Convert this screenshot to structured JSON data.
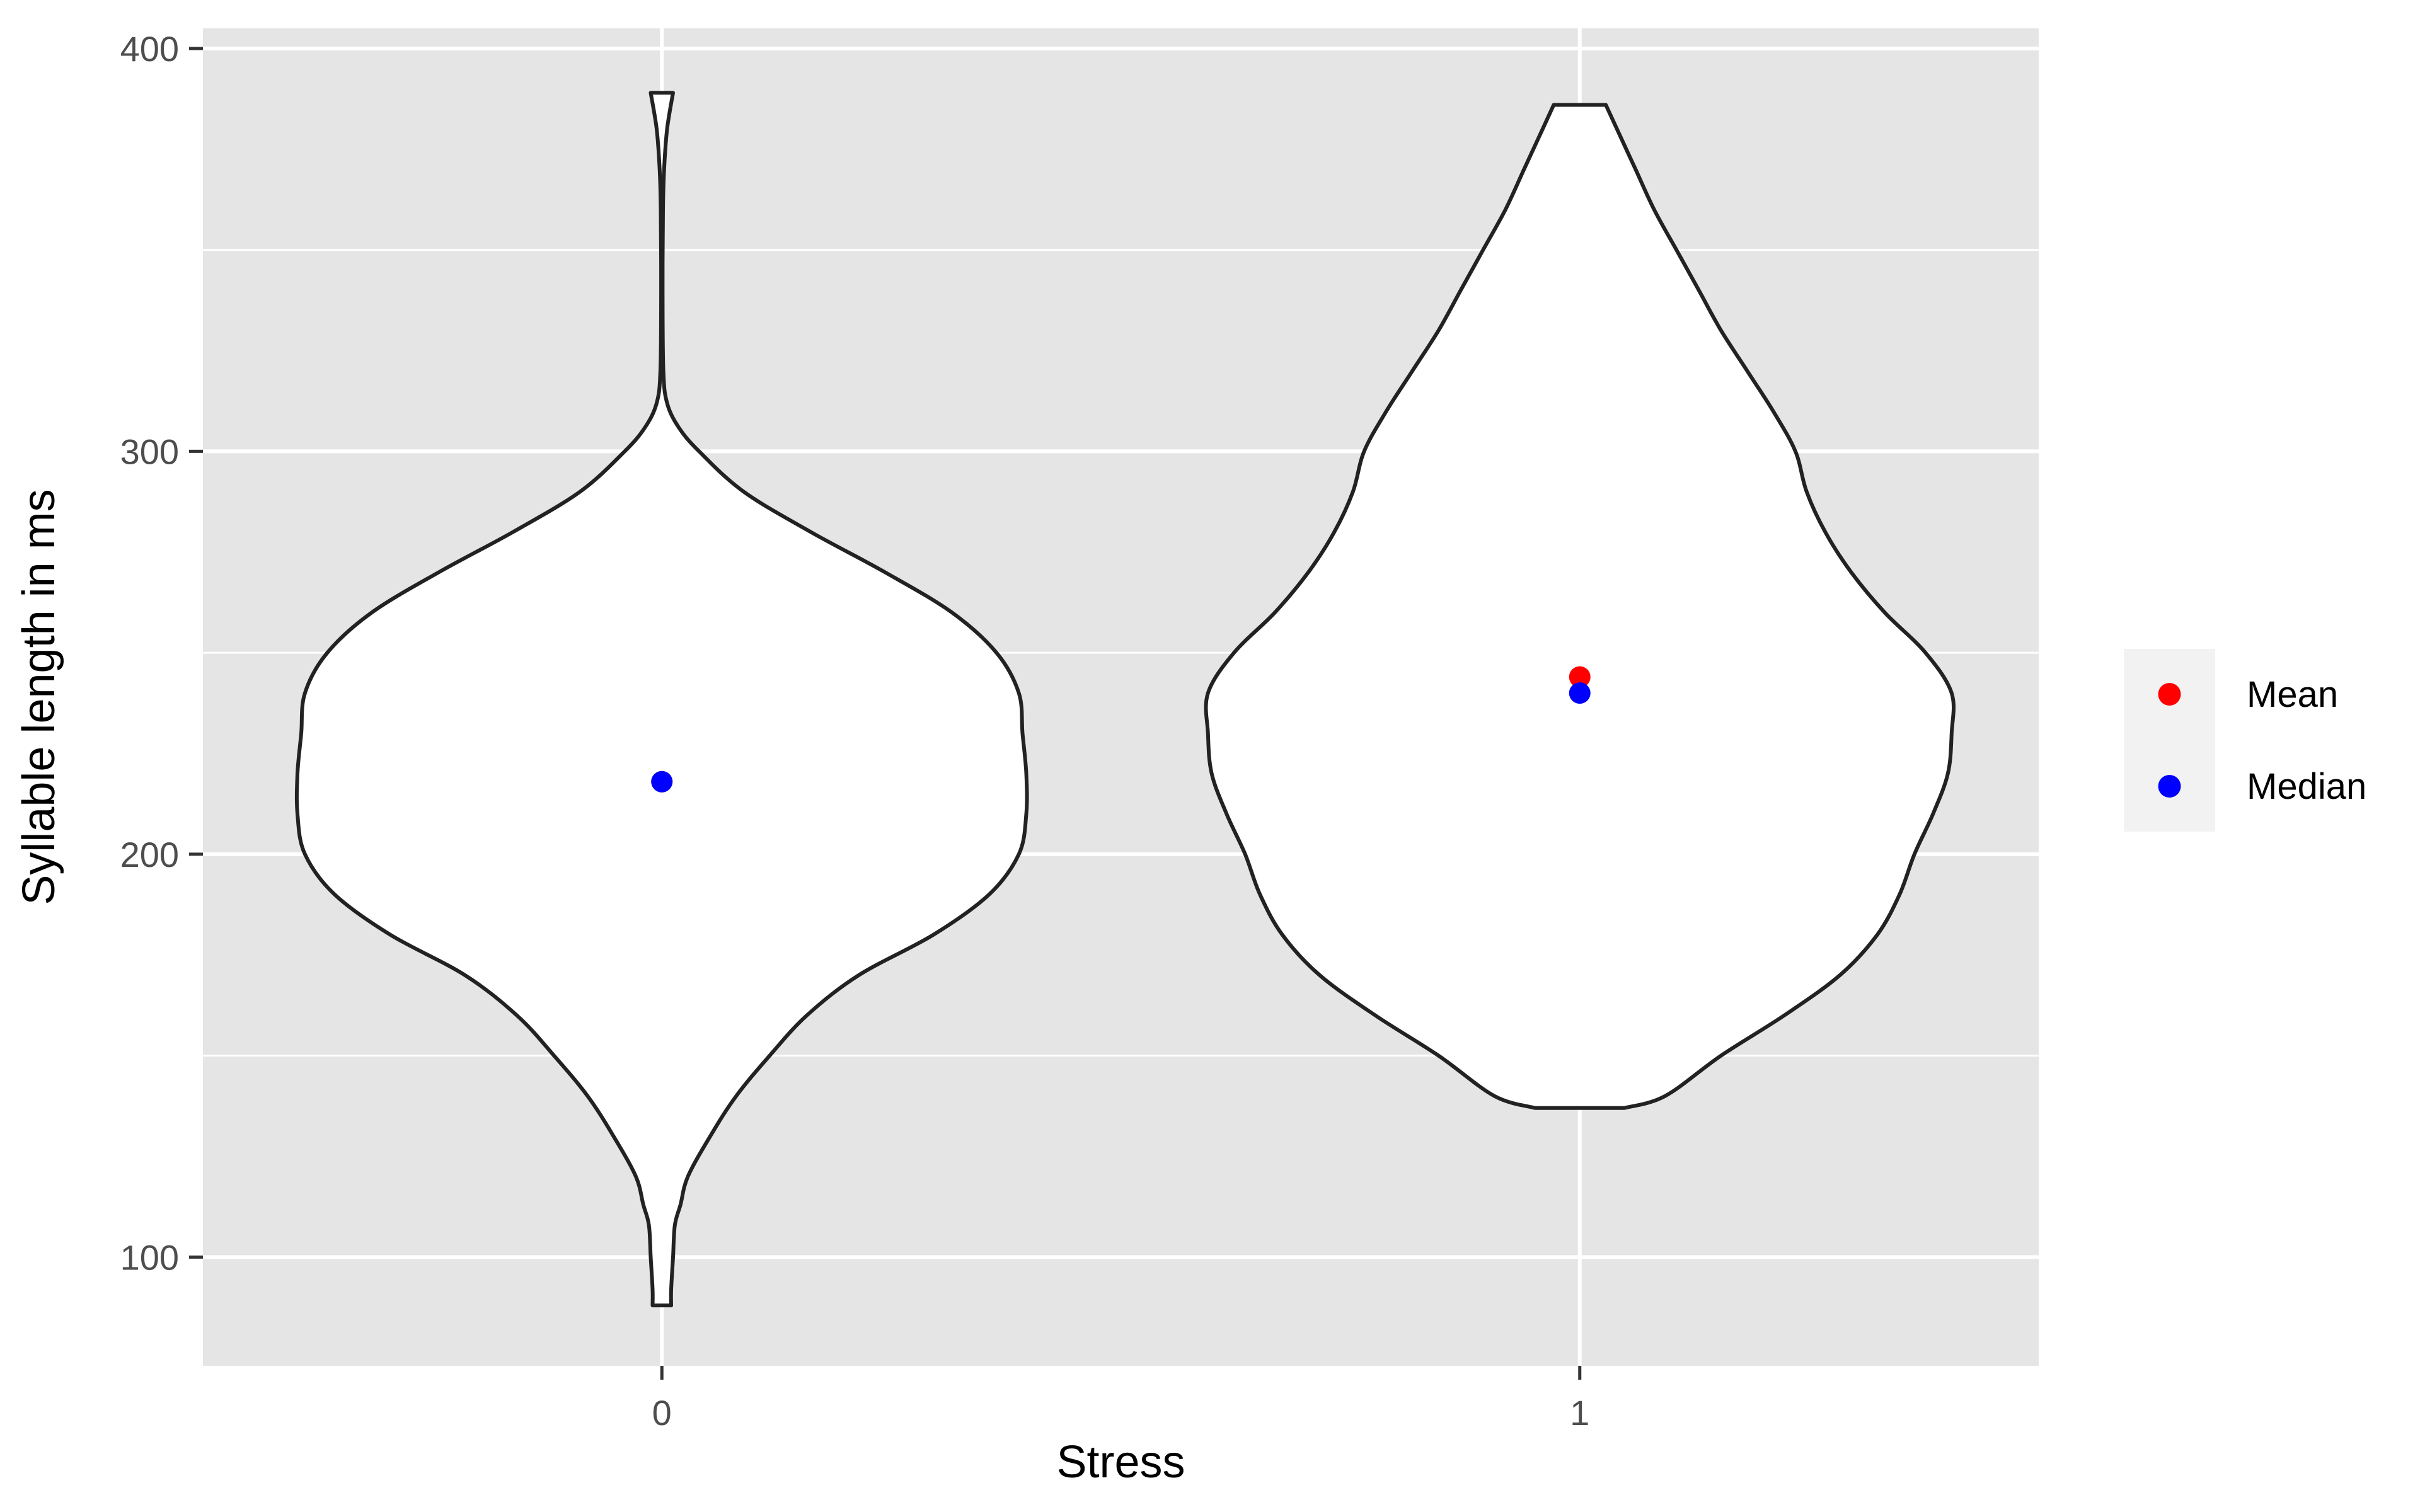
{
  "chart_data": {
    "type": "violin",
    "title": "",
    "xlabel": "Stress",
    "ylabel": "Syllable length in ms",
    "categories": [
      "0",
      "1"
    ],
    "ylim": [
      73,
      405
    ],
    "yticks": [
      100,
      200,
      300,
      400
    ],
    "ytick_labels": [
      "100",
      "200",
      "300",
      "400"
    ],
    "grid": true,
    "legend_position": "right",
    "colors": {
      "panel_background": "#e5e5e5",
      "grid_line": "#ffffff",
      "violin_fill": "#ffffff",
      "violin_outline": "#222222",
      "mean": "#ff0000",
      "median": "#0000ff"
    },
    "violins": [
      {
        "category": "0",
        "range": [
          88,
          389
        ],
        "density_profile": [
          [
            88,
            0.025
          ],
          [
            92,
            0.025
          ],
          [
            100,
            0.03
          ],
          [
            108,
            0.035
          ],
          [
            113,
            0.05
          ],
          [
            120,
            0.07
          ],
          [
            130,
            0.13
          ],
          [
            140,
            0.2
          ],
          [
            150,
            0.29
          ],
          [
            160,
            0.39
          ],
          [
            170,
            0.53
          ],
          [
            180,
            0.73
          ],
          [
            190,
            0.88
          ],
          [
            200,
            0.96
          ],
          [
            210,
            0.98
          ],
          [
            220,
            0.98
          ],
          [
            230,
            0.97
          ],
          [
            240,
            0.96
          ],
          [
            250,
            0.9
          ],
          [
            260,
            0.78
          ],
          [
            270,
            0.6
          ],
          [
            280,
            0.4
          ],
          [
            290,
            0.22
          ],
          [
            300,
            0.1
          ],
          [
            306,
            0.045
          ],
          [
            312,
            0.014
          ],
          [
            320,
            0.004
          ],
          [
            340,
            0.002
          ],
          [
            360,
            0.003
          ],
          [
            370,
            0.006
          ],
          [
            380,
            0.014
          ],
          [
            389,
            0.03
          ]
        ],
        "mean": 218,
        "median": 218
      },
      {
        "category": "1",
        "range": [
          137,
          386
        ],
        "density_profile": [
          [
            137,
            0.12
          ],
          [
            140,
            0.23
          ],
          [
            150,
            0.38
          ],
          [
            160,
            0.55
          ],
          [
            170,
            0.7
          ],
          [
            180,
            0.8
          ],
          [
            190,
            0.86
          ],
          [
            200,
            0.9
          ],
          [
            210,
            0.95
          ],
          [
            220,
            0.99
          ],
          [
            230,
            1.0
          ],
          [
            240,
            1.0
          ],
          [
            250,
            0.93
          ],
          [
            260,
            0.82
          ],
          [
            270,
            0.73
          ],
          [
            280,
            0.66
          ],
          [
            290,
            0.61
          ],
          [
            300,
            0.58
          ],
          [
            310,
            0.52
          ],
          [
            320,
            0.45
          ],
          [
            330,
            0.38
          ],
          [
            340,
            0.32
          ],
          [
            350,
            0.26
          ],
          [
            360,
            0.2
          ],
          [
            370,
            0.15
          ],
          [
            380,
            0.1
          ],
          [
            386,
            0.07
          ]
        ],
        "mean": 244,
        "median": 240
      }
    ],
    "legend": {
      "title": "",
      "entries": [
        {
          "label": "Mean",
          "color": "#ff0000"
        },
        {
          "label": "Median",
          "color": "#0000ff"
        }
      ]
    }
  }
}
